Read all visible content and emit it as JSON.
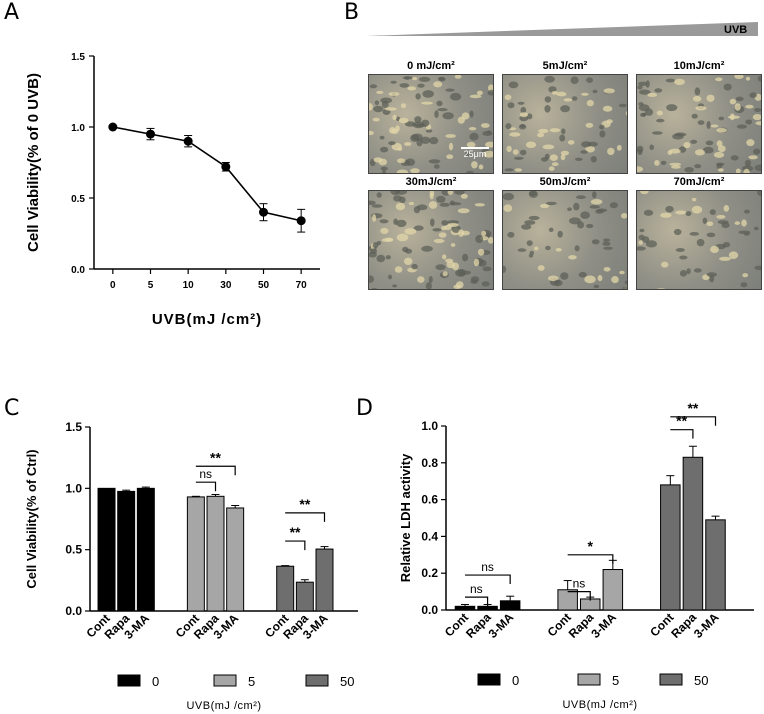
{
  "panels": {
    "a": {
      "letter": "A"
    },
    "b": {
      "letter": "B",
      "gradient_label": "UVB",
      "scale_bar": "25μm",
      "images": [
        "0 mJ/cm²",
        "5mJ/cm²",
        "10mJ/cm²",
        "30mJ/cm²",
        "50mJ/cm²",
        "70mJ/cm²"
      ]
    },
    "c": {
      "letter": "C"
    },
    "d": {
      "letter": "D"
    }
  },
  "chart_data": [
    {
      "id": "A",
      "type": "line",
      "categories": [
        "0",
        "5",
        "10",
        "30",
        "50",
        "70"
      ],
      "values": [
        1.0,
        0.95,
        0.9,
        0.72,
        0.4,
        0.34
      ],
      "errors": [
        0.01,
        0.04,
        0.04,
        0.03,
        0.06,
        0.08
      ],
      "ylabel": "Cell Viability(% of 0 UVB)",
      "xlabel": "UVB(mJ /cm²)",
      "ylim": [
        0,
        1.5
      ],
      "yticks": [
        "0.0",
        "0.5",
        "1.0",
        "1.5"
      ],
      "colors": {
        "line": "#000000"
      }
    },
    {
      "id": "C",
      "type": "bar",
      "groups": [
        "0",
        "5",
        "50"
      ],
      "categories": [
        "Cont",
        "Rapa",
        "3-MA"
      ],
      "values": [
        [
          1.0,
          0.975,
          1.0
        ],
        [
          0.93,
          0.935,
          0.84
        ],
        [
          0.365,
          0.235,
          0.505
        ]
      ],
      "errors": [
        [
          0.0,
          0.01,
          0.01
        ],
        [
          0.005,
          0.015,
          0.02
        ],
        [
          0.005,
          0.02,
          0.02
        ]
      ],
      "group_colors": [
        "#000000",
        "#a6a6a6",
        "#6e6e6e"
      ],
      "ylabel": "Cell Viability(% of Ctrl)",
      "xlabel": "UVB(mJ /cm²)",
      "ylim": [
        0,
        1.5
      ],
      "yticks": [
        "0.0",
        "0.5",
        "1.0",
        "1.5"
      ],
      "legend": [
        "0",
        "5",
        "50"
      ],
      "annotations": [
        {
          "group": 1,
          "from": 0,
          "to": 1,
          "y": 1.05,
          "label": "ns"
        },
        {
          "group": 1,
          "from": 0,
          "to": 2,
          "y": 1.18,
          "label": "**"
        },
        {
          "group": 2,
          "from": 0,
          "to": 1,
          "y": 0.57,
          "label": "**"
        },
        {
          "group": 2,
          "from": 0,
          "to": 2,
          "y": 0.8,
          "label": "**"
        }
      ]
    },
    {
      "id": "D",
      "type": "bar",
      "groups": [
        "0",
        "5",
        "50"
      ],
      "categories": [
        "Cont",
        "Rapa",
        "3-MA"
      ],
      "values": [
        [
          0.02,
          0.02,
          0.05
        ],
        [
          0.11,
          0.06,
          0.22
        ],
        [
          0.68,
          0.83,
          0.49
        ]
      ],
      "errors": [
        [
          0.01,
          0.01,
          0.025
        ],
        [
          0.05,
          0.01,
          0.05
        ],
        [
          0.05,
          0.06,
          0.02
        ]
      ],
      "group_colors": [
        "#000000",
        "#a6a6a6",
        "#6e6e6e"
      ],
      "ylabel": "Relative LDH activity",
      "xlabel": "UVB(mJ /cm²)",
      "ylim": [
        0,
        1.0
      ],
      "yticks": [
        "0.0",
        "0.2",
        "0.4",
        "0.6",
        "0.8",
        "1.0"
      ],
      "legend": [
        "0",
        "5",
        "50"
      ],
      "annotations": [
        {
          "group": 0,
          "from": 0,
          "to": 1,
          "y": 0.07,
          "label": "ns"
        },
        {
          "group": 0,
          "from": 0,
          "to": 2,
          "y": 0.19,
          "label": "ns"
        },
        {
          "group": 1,
          "from": 0,
          "to": 1,
          "y": 0.1,
          "label": "ns"
        },
        {
          "group": 1,
          "from": 0,
          "to": 2,
          "y": 0.3,
          "label": "*"
        },
        {
          "group": 2,
          "from": 0,
          "to": 1,
          "y": 0.98,
          "label": "**"
        },
        {
          "group": 2,
          "from": 0,
          "to": 2,
          "y": 1.05,
          "label": "**"
        }
      ]
    }
  ]
}
